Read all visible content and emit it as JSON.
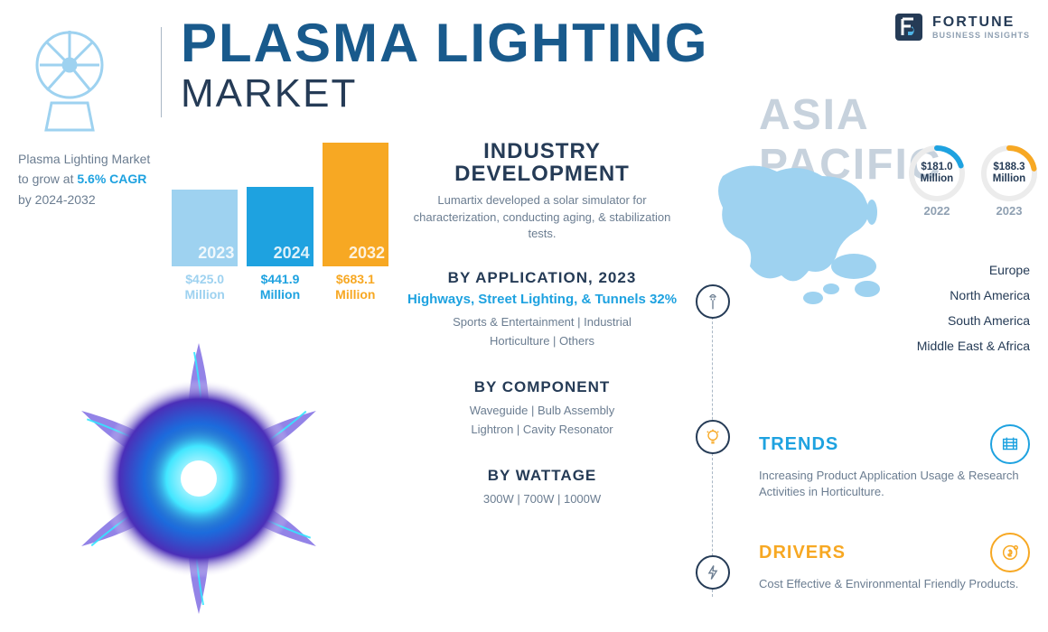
{
  "brand": {
    "name": "FORTUNE",
    "sub": "BUSINESS INSIGHTS"
  },
  "title": {
    "line1": "PLASMA LIGHTING",
    "line2": "MARKET"
  },
  "colors": {
    "primary_dark": "#253b56",
    "primary_blue": "#195a8c",
    "accent_blue": "#1ea2e0",
    "light_blue": "#9ed2f0",
    "orange": "#f7a823",
    "grey_text": "#6b7d91",
    "grey_light": "#c7d2dd",
    "background": "#ffffff",
    "map_fill": "#9ed2f0",
    "donut_track": "#ececec"
  },
  "cagr": {
    "pre": "Plasma Lighting Market to grow at",
    "rate": "5.6% CAGR",
    "post": "by 2024-2032"
  },
  "bar_chart": {
    "type": "bar",
    "unit": "Million",
    "bars": [
      {
        "year": "2023",
        "value": 425.0,
        "label": "$425.0",
        "color": "#9ed2f0"
      },
      {
        "year": "2024",
        "value": 441.9,
        "label": "$441.9",
        "color": "#1ea2e0"
      },
      {
        "year": "2032",
        "value": 683.1,
        "label": "$683.1",
        "color": "#f7a823"
      }
    ],
    "y_max": 700
  },
  "industry_dev": {
    "title": "INDUSTRY DEVELOPMENT",
    "body": "Lumartix developed a solar simulator for characterization, conducting aging, & stabilization tests."
  },
  "segments": [
    {
      "title": "BY APPLICATION, 2023",
      "lead": "Highways, Street Lighting, & Tunnels 32%",
      "rest": "Sports & Entertainment  |  Industrial\nHorticulture  |  Others",
      "icon": "streetlight"
    },
    {
      "title": "BY COMPONENT",
      "lead": "",
      "rest": "Waveguide  |   Bulb Assembly\nLightron  |  Cavity Resonator",
      "icon": "bulb"
    },
    {
      "title": "BY WATTAGE",
      "lead": "",
      "rest": "300W  |  700W  |  1000W",
      "icon": "bolt"
    }
  ],
  "asia_pacific": {
    "title": "ASIA PACIFIC",
    "donuts": [
      {
        "year": "2022",
        "value": "$181.0",
        "unit": "Million",
        "percent": 20,
        "color": "#1ea2e0"
      },
      {
        "year": "2023",
        "value": "$188.3",
        "unit": "Million",
        "percent": 22,
        "color": "#f7a823"
      }
    ],
    "regions": [
      "Europe",
      "North America",
      "South America",
      "Middle East & Africa"
    ]
  },
  "cards": [
    {
      "title": "TRENDS",
      "color": "#1ea2e0",
      "body": "Increasing Product Application Usage & Research Activities in Horticulture.",
      "icon": "rack"
    },
    {
      "title": "DRIVERS",
      "color": "#f7a823",
      "body": "Cost Effective & Environmental Friendly Products.",
      "icon": "coin"
    }
  ]
}
